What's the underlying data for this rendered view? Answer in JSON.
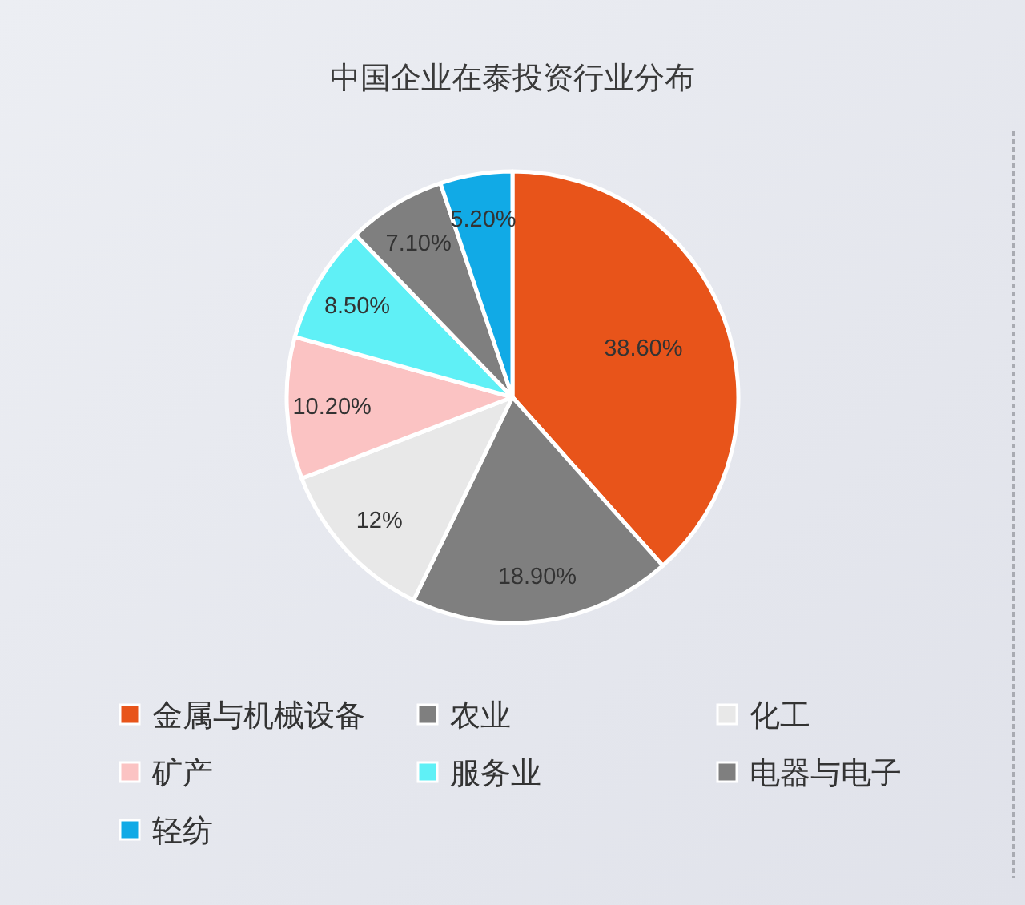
{
  "chart_data": {
    "type": "pie",
    "title": "中国企业在泰投资行业分布",
    "categories": [
      "金属与机械设备",
      "农业",
      "化工",
      "矿产",
      "服务业",
      "电器与电子",
      "轻纺"
    ],
    "values": [
      38.6,
      18.9,
      12,
      10.2,
      8.5,
      7.1,
      5.2
    ],
    "colors": [
      "#e8541a",
      "#7f7f7f",
      "#e8e8e8",
      "#fbc3c3",
      "#5ff0f6",
      "#7f7f7f",
      "#11aae6"
    ],
    "value_labels": [
      "38.60%",
      "18.90%",
      "12%",
      "10.20%",
      "8.50%",
      "7.10%",
      "5.20%"
    ],
    "legend": "bottom"
  }
}
